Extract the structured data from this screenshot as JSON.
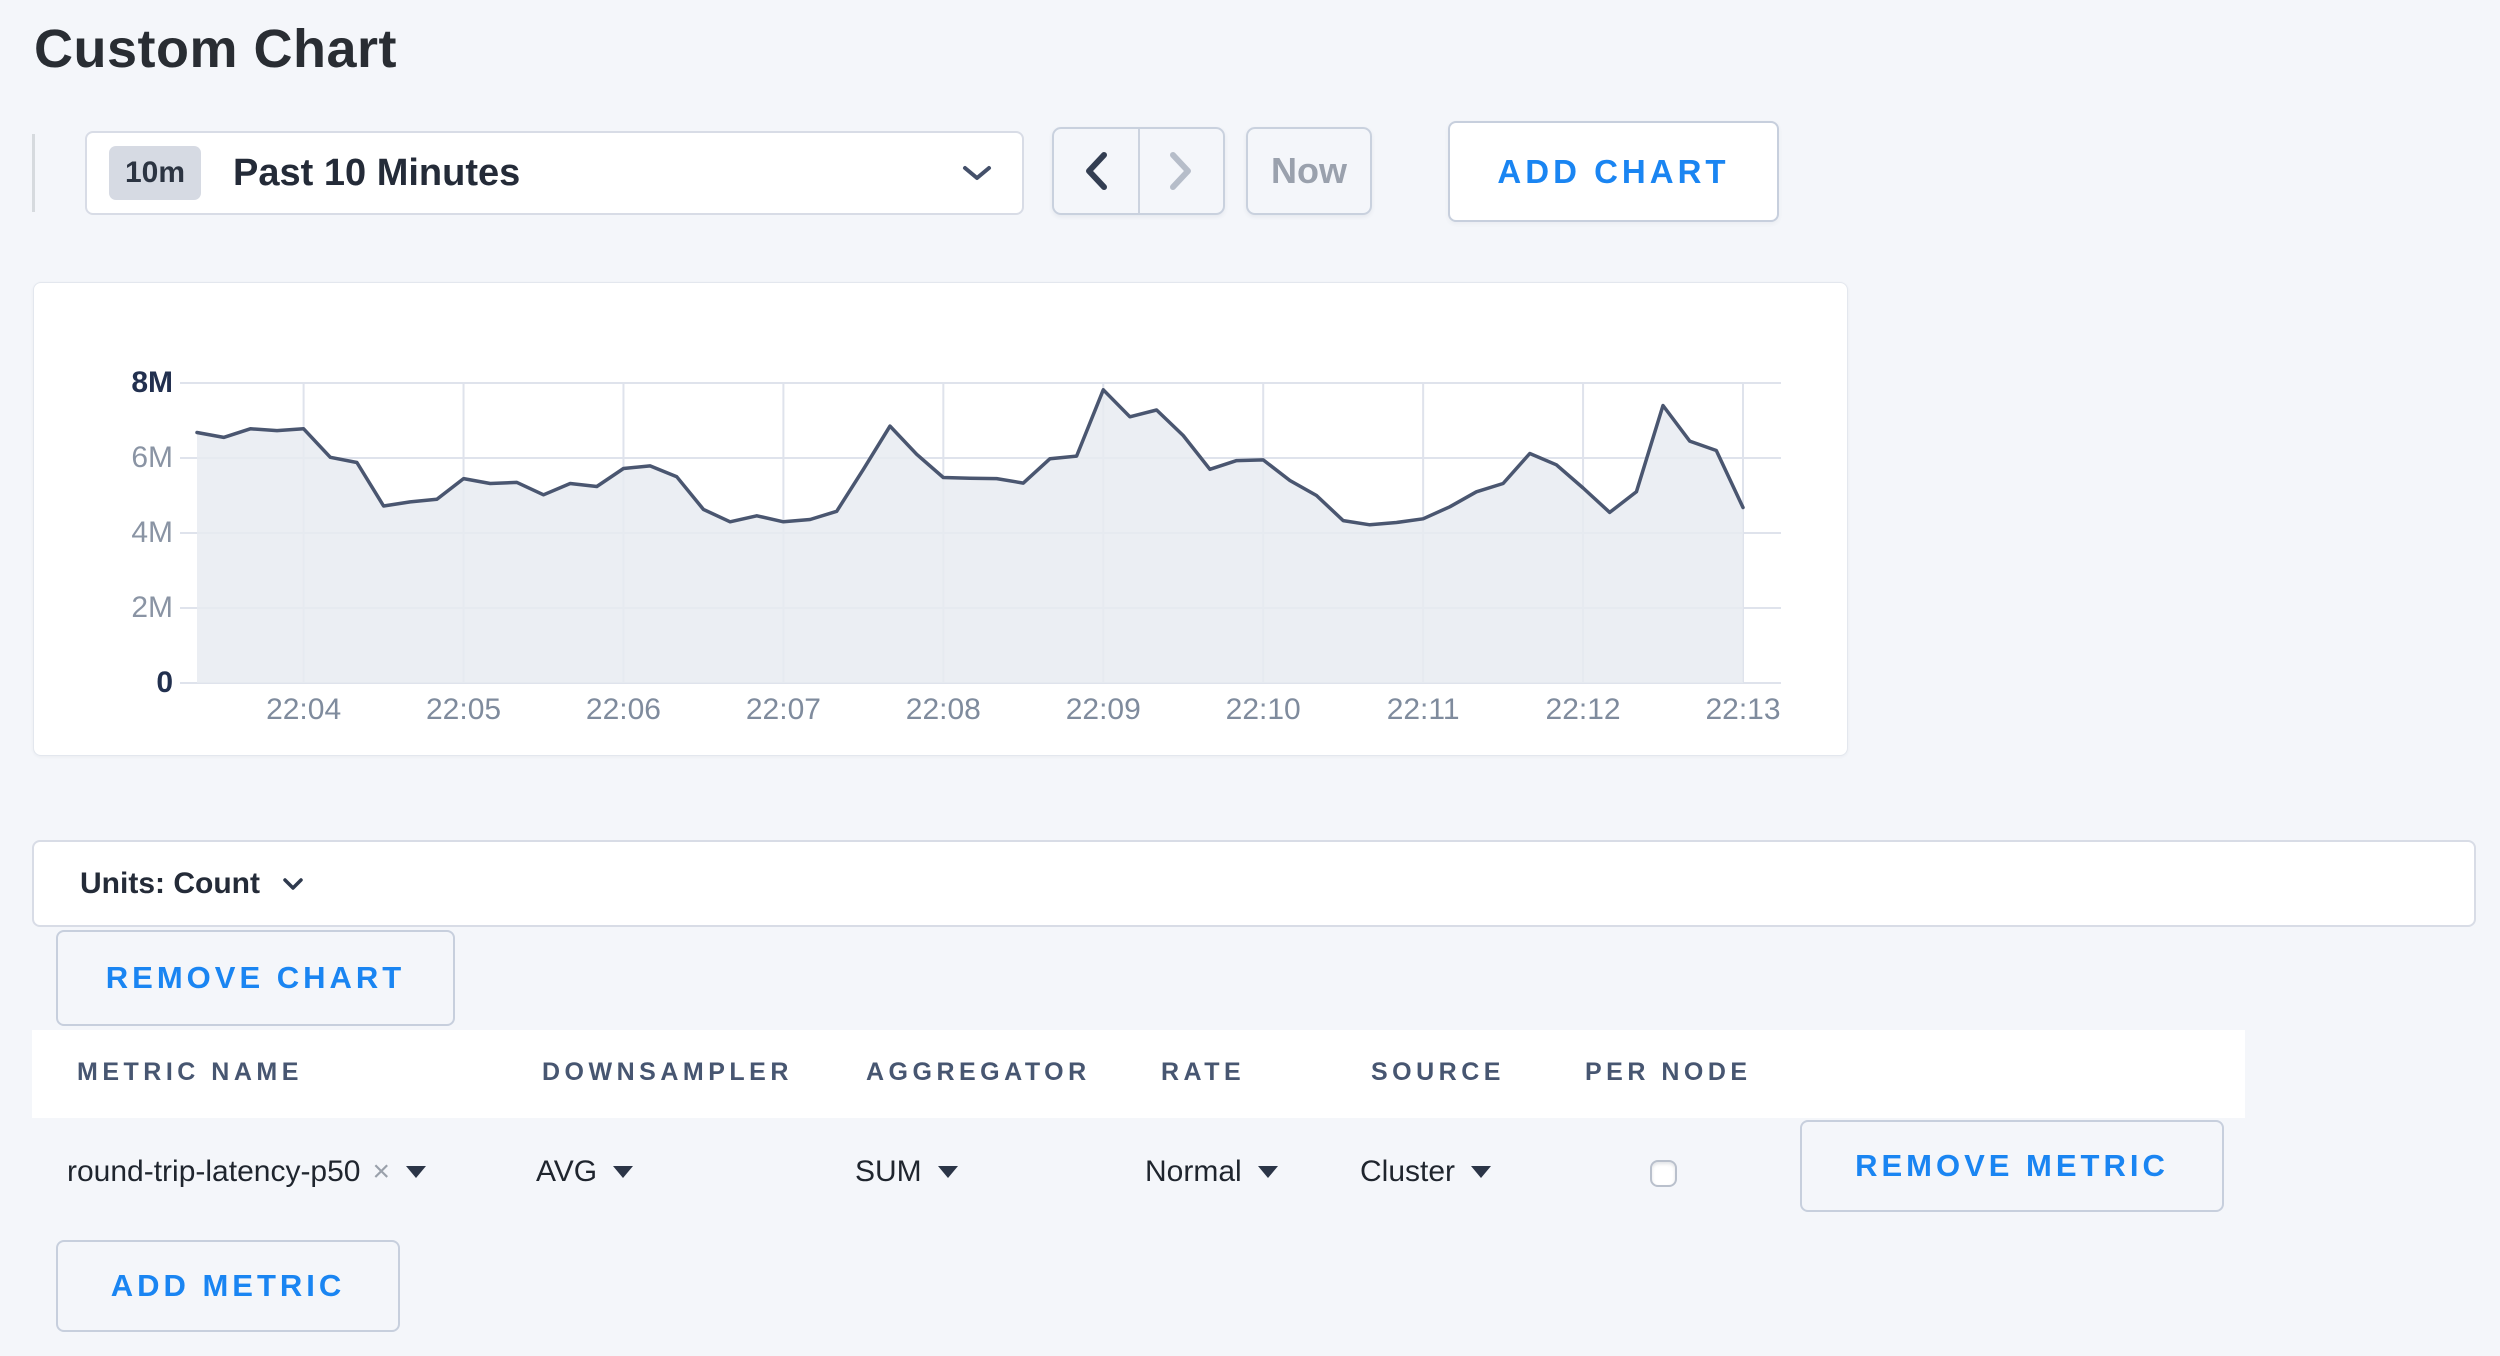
{
  "page": {
    "title": "Custom Chart"
  },
  "toolbar": {
    "time_range": {
      "badge": "10m",
      "label": "Past 10 Minutes"
    },
    "prev_icon": "chevron-left",
    "next_icon": "chevron-right",
    "now_label": "Now",
    "add_chart_label": "ADD CHART"
  },
  "units_bar": {
    "label": "Units: Count"
  },
  "remove_chart_label": "REMOVE CHART",
  "chart_data": {
    "type": "area",
    "title": "",
    "xlabel": "",
    "ylabel": "",
    "ylim": [
      0,
      8000000
    ],
    "grid": true,
    "legend_position": "none",
    "y_ticks": [
      "0",
      "2M",
      "4M",
      "6M",
      "8M"
    ],
    "x_ticks": [
      "22:04",
      "22:05",
      "22:06",
      "22:07",
      "22:08",
      "22:09",
      "22:10",
      "22:11",
      "22:12",
      "22:13"
    ],
    "start_time": "22:03:20",
    "end_time": "22:13:00",
    "interval_seconds": 10,
    "line_color": "#4a5670",
    "fill_color": "#e8ebf1",
    "grid_color": "#dfe3ec",
    "series": [
      {
        "name": "round-trip-latency-p50",
        "values_millions": [
          6.68,
          6.55,
          6.78,
          6.73,
          6.78,
          6.02,
          5.88,
          4.72,
          4.83,
          4.9,
          5.45,
          5.32,
          5.35,
          5.02,
          5.32,
          5.24,
          5.72,
          5.79,
          5.5,
          4.63,
          4.3,
          4.46,
          4.3,
          4.36,
          4.58,
          5.7,
          6.85,
          6.1,
          5.48,
          5.46,
          5.45,
          5.33,
          5.98,
          6.05,
          7.82,
          7.1,
          7.28,
          6.6,
          5.7,
          5.93,
          5.95,
          5.4,
          5.0,
          4.33,
          4.22,
          4.28,
          4.38,
          4.7,
          5.1,
          5.32,
          6.12,
          5.82,
          5.2,
          4.55,
          5.1,
          7.4,
          6.45,
          6.2,
          4.68
        ]
      }
    ]
  },
  "metrics_table": {
    "columns": [
      "METRIC NAME",
      "DOWNSAMPLER",
      "AGGREGATOR",
      "RATE",
      "SOURCE",
      "PER NODE"
    ],
    "clear_icon": "×",
    "rows": [
      {
        "metric_name": "round-trip-latency-p50",
        "downsampler": "AVG",
        "aggregator": "SUM",
        "rate": "Normal",
        "source": "Cluster",
        "per_node_checked": false,
        "remove_label": "REMOVE METRIC"
      }
    ],
    "add_metric_label": "ADD METRIC"
  }
}
